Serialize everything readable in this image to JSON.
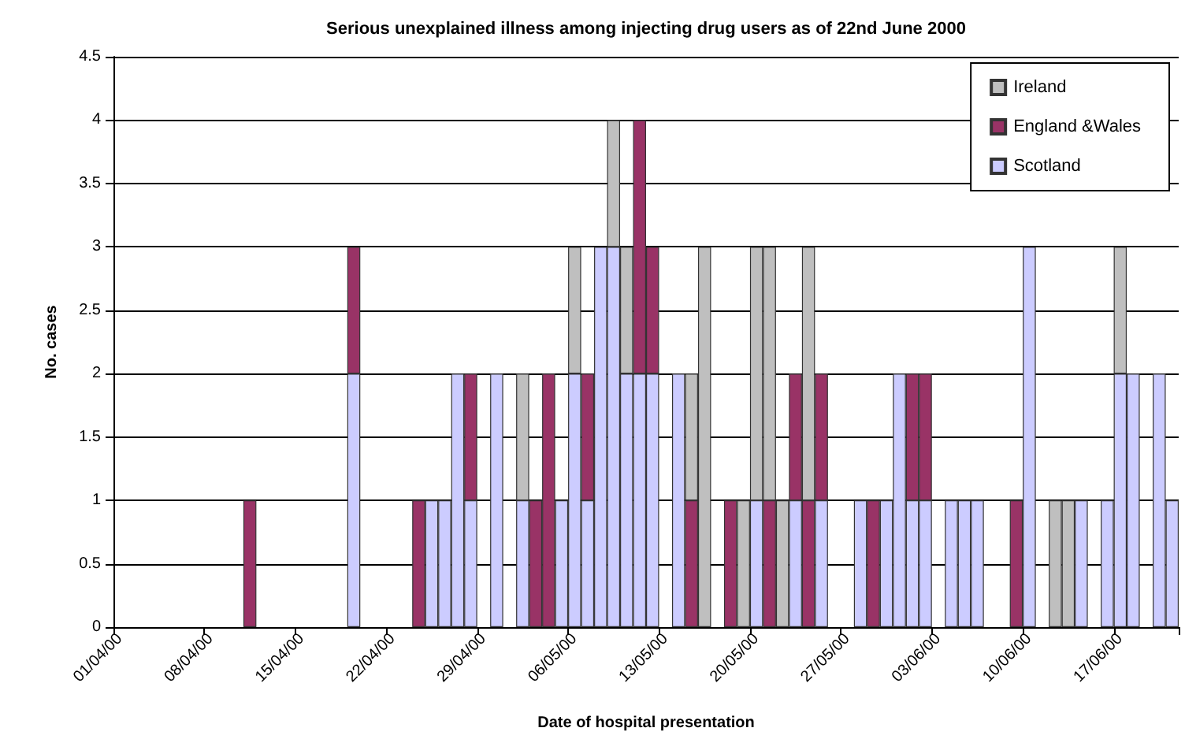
{
  "chart_data": {
    "type": "bar",
    "stacked": true,
    "title": "Serious unexplained illness among injecting drug users as of 22nd June 2000",
    "xlabel": "Date of hospital presentation",
    "ylabel": "No. cases",
    "categories": [
      "01/04/00",
      null,
      null,
      null,
      null,
      null,
      null,
      "08/04/00",
      null,
      null,
      null,
      null,
      null,
      null,
      "15/04/00",
      null,
      null,
      null,
      null,
      null,
      null,
      "22/04/00",
      null,
      null,
      null,
      null,
      null,
      null,
      "29/04/00",
      null,
      null,
      null,
      null,
      null,
      null,
      "06/05/00",
      null,
      null,
      null,
      null,
      null,
      null,
      "13/05/00",
      null,
      null,
      null,
      null,
      null,
      null,
      "20/05/00",
      null,
      null,
      null,
      null,
      null,
      null,
      "27/05/00",
      null,
      null,
      null,
      null,
      null,
      null,
      "03/06/00",
      null,
      null,
      null,
      null,
      null,
      null,
      "10/06/00",
      null,
      null,
      null,
      null,
      null,
      null,
      "17/06/00",
      null,
      null,
      null,
      null
    ],
    "series": [
      {
        "name": "Scotland",
        "color": "#ccccff",
        "values": [
          null,
          null,
          null,
          null,
          null,
          null,
          null,
          null,
          null,
          null,
          null,
          null,
          null,
          null,
          null,
          null,
          null,
          null,
          2,
          null,
          null,
          null,
          null,
          null,
          1,
          1,
          2,
          1,
          null,
          2,
          null,
          1,
          null,
          null,
          1,
          2,
          1,
          3,
          3,
          2,
          2,
          2,
          null,
          2,
          null,
          null,
          null,
          null,
          null,
          1,
          null,
          null,
          1,
          null,
          1,
          null,
          null,
          1,
          null,
          1,
          2,
          1,
          1,
          null,
          1,
          1,
          1,
          null,
          null,
          null,
          3,
          null,
          null,
          null,
          1,
          null,
          1,
          2,
          2,
          null,
          2,
          1
        ]
      },
      {
        "name": "England &Wales",
        "color": "#993366",
        "values": [
          null,
          null,
          null,
          null,
          null,
          null,
          null,
          null,
          null,
          null,
          1,
          null,
          null,
          null,
          null,
          null,
          null,
          null,
          1,
          null,
          null,
          null,
          null,
          1,
          null,
          null,
          null,
          1,
          null,
          null,
          null,
          null,
          1,
          2,
          null,
          null,
          1,
          null,
          null,
          null,
          2,
          1,
          null,
          null,
          1,
          null,
          null,
          1,
          null,
          null,
          1,
          null,
          1,
          1,
          1,
          null,
          null,
          null,
          1,
          null,
          null,
          1,
          1,
          null,
          null,
          null,
          null,
          null,
          null,
          1,
          null,
          null,
          null,
          null,
          null,
          null,
          null,
          null,
          null,
          null,
          null,
          null
        ]
      },
      {
        "name": "Ireland",
        "color": "#bfbfbf",
        "values": [
          null,
          null,
          null,
          null,
          null,
          null,
          null,
          null,
          null,
          null,
          null,
          null,
          null,
          null,
          null,
          null,
          null,
          null,
          null,
          null,
          null,
          null,
          null,
          null,
          null,
          null,
          null,
          null,
          null,
          null,
          null,
          1,
          null,
          null,
          null,
          1,
          null,
          null,
          1,
          1,
          null,
          null,
          null,
          null,
          1,
          3,
          null,
          null,
          1,
          2,
          2,
          1,
          null,
          2,
          null,
          null,
          null,
          null,
          null,
          null,
          null,
          null,
          null,
          null,
          null,
          null,
          null,
          null,
          null,
          null,
          null,
          null,
          1,
          1,
          null,
          null,
          null,
          1,
          null,
          null,
          null,
          null
        ]
      }
    ],
    "ylim": [
      0,
      4.5
    ],
    "yticks": [
      0,
      0.5,
      1,
      1.5,
      2,
      2.5,
      3,
      3.5,
      4,
      4.5
    ],
    "grid": "y",
    "legend": "top right"
  }
}
